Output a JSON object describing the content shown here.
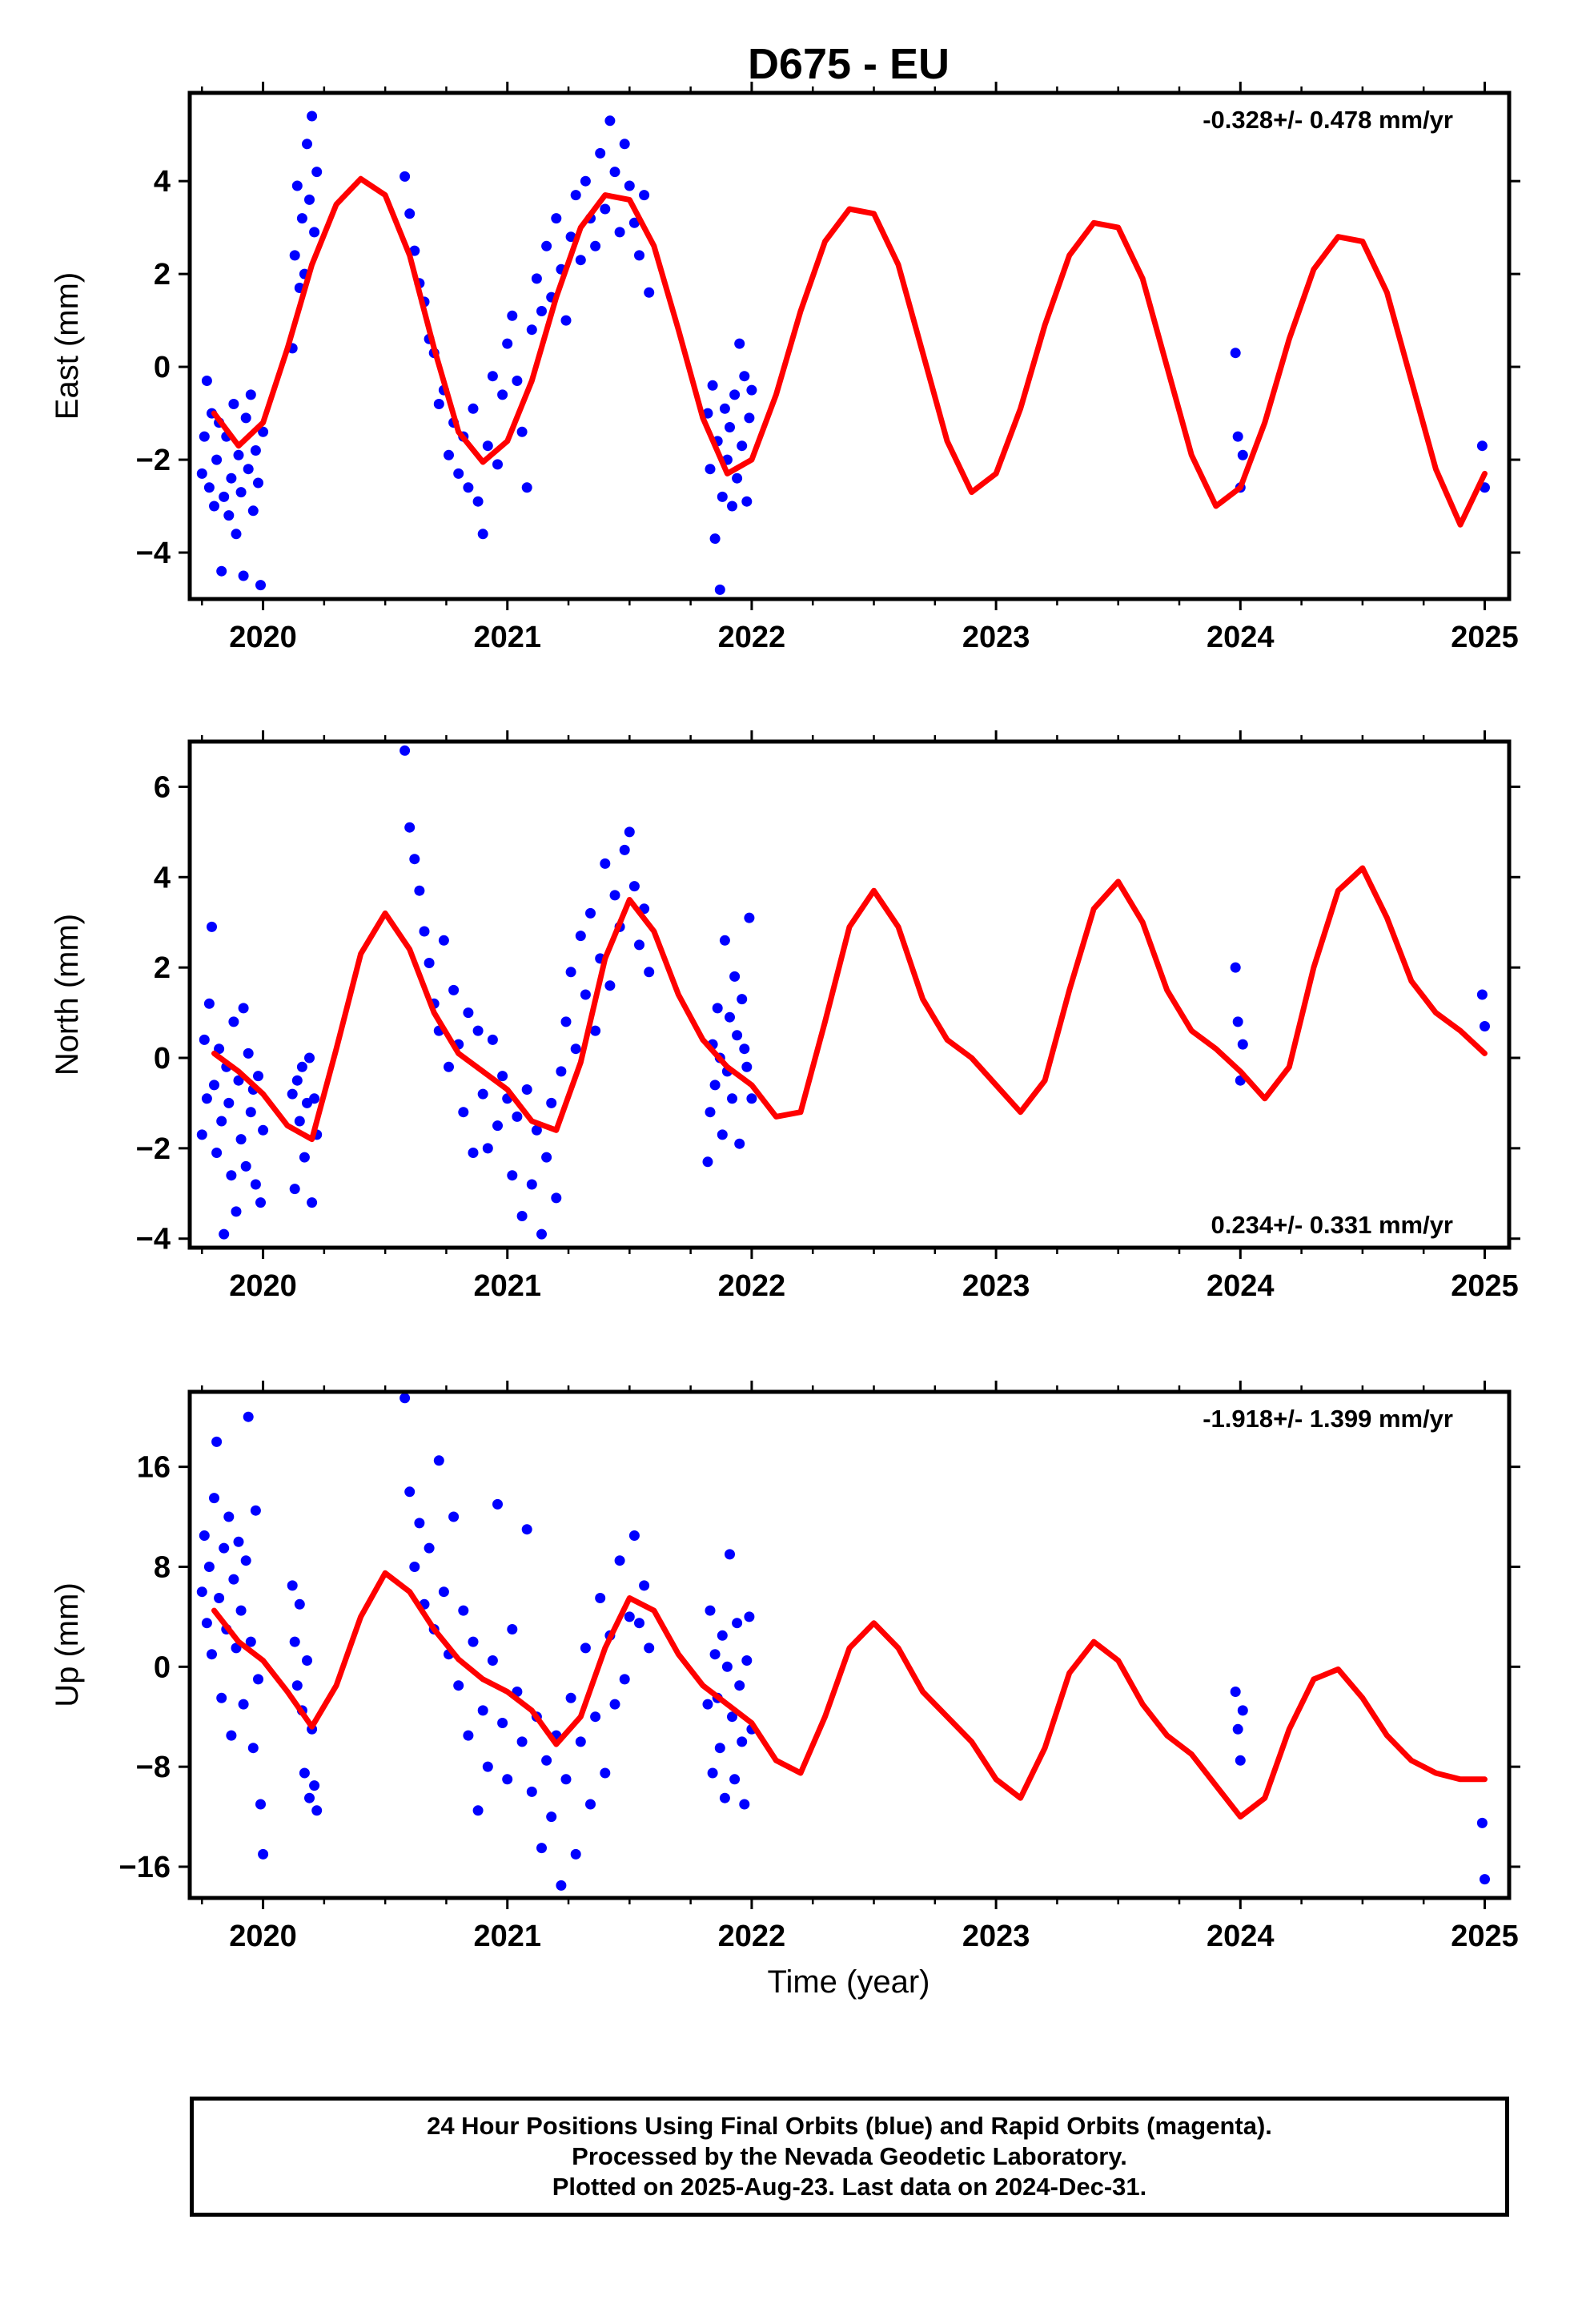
{
  "title": "D675 - EU",
  "footer": {
    "line1": "24 Hour Positions Using Final Orbits (blue) and Rapid Orbits (magenta).",
    "line2": "Processed by the Nevada Geodetic Laboratory.",
    "line3": "Plotted on 2025-Aug-23. Last data on 2024-Dec-31."
  },
  "colors": {
    "data": "#0000ff",
    "model": "#ff0000",
    "frame": "#000000"
  },
  "chart_data": [
    {
      "type": "scatter",
      "ylabel": "East (mm)",
      "xlabel": "",
      "rate_label": "-0.328+/- 0.478 mm/yr",
      "rate_position": "top-right",
      "xlim": [
        2019.7,
        2025.1
      ],
      "ylim": [
        -5.0,
        5.9
      ],
      "xticks": [
        2020,
        2021,
        2022,
        2023,
        2024,
        2025
      ],
      "yticks": [
        -4,
        -2,
        0,
        2,
        4
      ],
      "model": {
        "x": [
          2019.8,
          2019.9,
          2020.0,
          2020.1,
          2020.2,
          2020.3,
          2020.4,
          2020.5,
          2020.6,
          2020.7,
          2020.8,
          2020.9,
          2021.0,
          2021.1,
          2021.2,
          2021.3,
          2021.4,
          2021.5,
          2021.6,
          2021.7,
          2021.8,
          2021.9,
          2022.0,
          2022.1,
          2022.2,
          2022.3,
          2022.4,
          2022.5,
          2022.6,
          2022.7,
          2022.8,
          2022.9,
          2023.0,
          2023.1,
          2023.2,
          2023.3,
          2023.4,
          2023.5,
          2023.6,
          2023.7,
          2023.8,
          2023.9,
          2024.0,
          2024.1,
          2024.2,
          2024.3,
          2024.4,
          2024.5,
          2024.6,
          2024.7,
          2024.8,
          2024.9,
          2025.0
        ],
        "y": [
          -1.0,
          -1.7,
          -1.2,
          0.4,
          2.2,
          3.5,
          4.05,
          3.7,
          2.4,
          0.4,
          -1.4,
          -2.05,
          -1.6,
          -0.3,
          1.5,
          3.0,
          3.7,
          3.6,
          2.6,
          0.8,
          -1.1,
          -2.3,
          -2.0,
          -0.6,
          1.2,
          2.7,
          3.4,
          3.3,
          2.2,
          0.3,
          -1.6,
          -2.7,
          -2.3,
          -0.9,
          0.9,
          2.4,
          3.1,
          3.0,
          1.9,
          0.0,
          -1.9,
          -3.0,
          -2.6,
          -1.2,
          0.6,
          2.1,
          2.8,
          2.7,
          1.6,
          -0.3,
          -2.2,
          -3.4,
          -2.3
        ]
      },
      "points": {
        "x": [
          2019.75,
          2019.76,
          2019.77,
          2019.78,
          2019.79,
          2019.8,
          2019.81,
          2019.82,
          2019.83,
          2019.84,
          2019.85,
          2019.86,
          2019.87,
          2019.88,
          2019.89,
          2019.9,
          2019.91,
          2019.92,
          2019.93,
          2019.94,
          2019.95,
          2019.96,
          2019.97,
          2019.98,
          2019.99,
          2020.0,
          2020.12,
          2020.13,
          2020.14,
          2020.15,
          2020.16,
          2020.17,
          2020.18,
          2020.19,
          2020.2,
          2020.21,
          2020.22,
          2020.58,
          2020.6,
          2020.62,
          2020.64,
          2020.66,
          2020.68,
          2020.7,
          2020.72,
          2020.74,
          2020.76,
          2020.78,
          2020.8,
          2020.82,
          2020.84,
          2020.86,
          2020.88,
          2020.9,
          2020.92,
          2020.94,
          2020.96,
          2020.98,
          2021.0,
          2021.02,
          2021.04,
          2021.06,
          2021.08,
          2021.1,
          2021.12,
          2021.14,
          2021.16,
          2021.18,
          2021.2,
          2021.22,
          2021.24,
          2021.26,
          2021.28,
          2021.3,
          2021.32,
          2021.34,
          2021.36,
          2021.38,
          2021.4,
          2021.42,
          2021.44,
          2021.46,
          2021.48,
          2021.5,
          2021.52,
          2021.54,
          2021.56,
          2021.58,
          2021.82,
          2021.83,
          2021.84,
          2021.85,
          2021.86,
          2021.87,
          2021.88,
          2021.89,
          2021.9,
          2021.91,
          2021.92,
          2021.93,
          2021.94,
          2021.95,
          2021.96,
          2021.97,
          2021.98,
          2021.99,
          2022.0,
          2023.98,
          2023.99,
          2024.0,
          2024.01,
          2024.99,
          2025.0
        ],
        "y": [
          -2.3,
          -1.5,
          -0.3,
          -2.6,
          -1.0,
          -3.0,
          -2.0,
          -1.2,
          -4.4,
          -2.8,
          -1.5,
          -3.2,
          -2.4,
          -0.8,
          -3.6,
          -1.9,
          -2.7,
          -4.5,
          -1.1,
          -2.2,
          -0.6,
          -3.1,
          -1.8,
          -2.5,
          -4.7,
          -1.4,
          0.4,
          2.4,
          3.9,
          1.7,
          3.2,
          2.0,
          4.8,
          3.6,
          5.4,
          2.9,
          4.2,
          4.1,
          3.3,
          2.5,
          1.8,
          1.4,
          0.6,
          0.3,
          -0.8,
          -0.5,
          -1.9,
          -1.2,
          -2.3,
          -1.5,
          -2.6,
          -0.9,
          -2.9,
          -3.6,
          -1.7,
          -0.2,
          -2.1,
          -0.6,
          0.5,
          1.1,
          -0.3,
          -1.4,
          -2.6,
          0.8,
          1.9,
          1.2,
          2.6,
          1.5,
          3.2,
          2.1,
          1.0,
          2.8,
          3.7,
          2.3,
          4.0,
          3.2,
          2.6,
          4.6,
          3.4,
          5.3,
          4.2,
          2.9,
          4.8,
          3.9,
          3.1,
          2.4,
          3.7,
          1.6,
          -1.0,
          -2.2,
          -0.4,
          -3.7,
          -1.6,
          -4.8,
          -2.8,
          -0.9,
          -2.0,
          -1.3,
          -3.0,
          -0.6,
          -2.4,
          0.5,
          -1.7,
          -0.2,
          -2.9,
          -1.1,
          -0.5,
          0.3,
          -1.5,
          -2.6,
          -1.9,
          -1.7,
          -2.6
        ]
      }
    },
    {
      "type": "scatter",
      "ylabel": "North (mm)",
      "xlabel": "",
      "rate_label": "0.234+/- 0.331 mm/yr",
      "rate_position": "bottom-right",
      "xlim": [
        2019.7,
        2025.1
      ],
      "ylim": [
        -4.2,
        7.0
      ],
      "xticks": [
        2020,
        2021,
        2022,
        2023,
        2024,
        2025
      ],
      "yticks": [
        -4,
        -2,
        0,
        2,
        4,
        6
      ],
      "model": {
        "x": [
          2019.8,
          2019.9,
          2020.0,
          2020.1,
          2020.2,
          2020.3,
          2020.4,
          2020.5,
          2020.6,
          2020.7,
          2020.8,
          2020.9,
          2021.0,
          2021.1,
          2021.2,
          2021.3,
          2021.4,
          2021.5,
          2021.6,
          2021.7,
          2021.8,
          2021.9,
          2022.0,
          2022.1,
          2022.2,
          2022.3,
          2022.4,
          2022.5,
          2022.6,
          2022.7,
          2022.8,
          2022.9,
          2023.0,
          2023.1,
          2023.2,
          2023.3,
          2023.4,
          2023.5,
          2023.6,
          2023.7,
          2023.8,
          2023.9,
          2024.0,
          2024.1,
          2024.2,
          2024.3,
          2024.4,
          2024.5,
          2024.6,
          2024.7,
          2024.8,
          2024.9,
          2025.0
        ],
        "y": [
          0.1,
          -0.3,
          -0.8,
          -1.5,
          -1.8,
          0.2,
          2.3,
          3.2,
          2.4,
          1.0,
          0.1,
          -0.3,
          -0.7,
          -1.4,
          -1.6,
          -0.1,
          2.2,
          3.5,
          2.8,
          1.4,
          0.4,
          -0.2,
          -0.6,
          -1.3,
          -1.2,
          0.8,
          2.9,
          3.7,
          2.9,
          1.3,
          0.4,
          0.0,
          -0.6,
          -1.2,
          -0.5,
          1.5,
          3.3,
          3.9,
          3.0,
          1.5,
          0.6,
          0.2,
          -0.3,
          -0.9,
          -0.2,
          2.0,
          3.7,
          4.2,
          3.1,
          1.7,
          1.0,
          0.6,
          0.1
        ]
      },
      "points": {
        "x": [
          2019.75,
          2019.76,
          2019.77,
          2019.78,
          2019.79,
          2019.8,
          2019.81,
          2019.82,
          2019.83,
          2019.84,
          2019.85,
          2019.86,
          2019.87,
          2019.88,
          2019.89,
          2019.9,
          2019.91,
          2019.92,
          2019.93,
          2019.94,
          2019.95,
          2019.96,
          2019.97,
          2019.98,
          2019.99,
          2020.0,
          2020.12,
          2020.13,
          2020.14,
          2020.15,
          2020.16,
          2020.17,
          2020.18,
          2020.19,
          2020.2,
          2020.21,
          2020.22,
          2020.58,
          2020.6,
          2020.62,
          2020.64,
          2020.66,
          2020.68,
          2020.7,
          2020.72,
          2020.74,
          2020.76,
          2020.78,
          2020.8,
          2020.82,
          2020.84,
          2020.86,
          2020.88,
          2020.9,
          2020.92,
          2020.94,
          2020.96,
          2020.98,
          2021.0,
          2021.02,
          2021.04,
          2021.06,
          2021.08,
          2021.1,
          2021.12,
          2021.14,
          2021.16,
          2021.18,
          2021.2,
          2021.22,
          2021.24,
          2021.26,
          2021.28,
          2021.3,
          2021.32,
          2021.34,
          2021.36,
          2021.38,
          2021.4,
          2021.42,
          2021.44,
          2021.46,
          2021.48,
          2021.5,
          2021.52,
          2021.54,
          2021.56,
          2021.58,
          2021.82,
          2021.83,
          2021.84,
          2021.85,
          2021.86,
          2021.87,
          2021.88,
          2021.89,
          2021.9,
          2021.91,
          2021.92,
          2021.93,
          2021.94,
          2021.95,
          2021.96,
          2021.97,
          2021.98,
          2021.99,
          2022.0,
          2023.98,
          2023.99,
          2024.0,
          2024.01,
          2024.99,
          2025.0
        ],
        "y": [
          -1.7,
          0.4,
          -0.9,
          1.2,
          2.9,
          -0.6,
          -2.1,
          0.2,
          -1.4,
          -3.9,
          -0.2,
          -1.0,
          -2.6,
          0.8,
          -3.4,
          -0.5,
          -1.8,
          1.1,
          -2.4,
          0.1,
          -1.2,
          -0.7,
          -2.8,
          -0.4,
          -3.2,
          -1.6,
          -0.8,
          -2.9,
          -0.5,
          -1.4,
          -0.2,
          -2.2,
          -1.0,
          0.0,
          -3.2,
          -0.9,
          -1.7,
          6.8,
          5.1,
          4.4,
          3.7,
          2.8,
          2.1,
          1.2,
          0.6,
          2.6,
          -0.2,
          1.5,
          0.3,
          -1.2,
          1.0,
          -2.1,
          0.6,
          -0.8,
          -2.0,
          0.4,
          -1.5,
          -0.4,
          -0.9,
          -2.6,
          -1.3,
          -3.5,
          -0.7,
          -2.8,
          -1.6,
          -3.9,
          -2.2,
          -1.0,
          -3.1,
          -0.3,
          0.8,
          1.9,
          0.2,
          2.7,
          1.4,
          3.2,
          0.6,
          2.2,
          4.3,
          1.6,
          3.6,
          2.9,
          4.6,
          5.0,
          3.8,
          2.5,
          3.3,
          1.9,
          -2.3,
          -1.2,
          0.3,
          -0.6,
          1.1,
          0.0,
          -1.7,
          2.6,
          -0.3,
          0.9,
          -0.9,
          1.8,
          0.5,
          -1.9,
          1.3,
          0.2,
          -0.2,
          3.1,
          -0.9,
          2.0,
          0.8,
          -0.5,
          0.3,
          1.4,
          0.7
        ]
      }
    },
    {
      "type": "scatter",
      "ylabel": "Up (mm)",
      "xlabel": "Time (year)",
      "rate_label": "-1.918+/- 1.399 mm/yr",
      "rate_position": "top-right",
      "xlim": [
        2019.7,
        2025.1
      ],
      "ylim": [
        -18.5,
        22.0
      ],
      "xticks": [
        2020,
        2021,
        2022,
        2023,
        2024,
        2025
      ],
      "yticks": [
        -16,
        -8,
        0,
        8,
        16
      ],
      "model": {
        "x": [
          2019.8,
          2019.9,
          2020.0,
          2020.1,
          2020.2,
          2020.3,
          2020.4,
          2020.5,
          2020.6,
          2020.7,
          2020.8,
          2020.9,
          2021.0,
          2021.1,
          2021.2,
          2021.3,
          2021.4,
          2021.5,
          2021.6,
          2021.7,
          2021.8,
          2021.9,
          2022.0,
          2022.1,
          2022.2,
          2022.3,
          2022.4,
          2022.5,
          2022.6,
          2022.7,
          2022.8,
          2022.9,
          2023.0,
          2023.1,
          2023.2,
          2023.3,
          2023.4,
          2023.5,
          2023.6,
          2023.7,
          2023.8,
          2023.9,
          2024.0,
          2024.1,
          2024.2,
          2024.3,
          2024.4,
          2024.5,
          2024.6,
          2024.7,
          2024.8,
          2024.9,
          2025.0
        ],
        "y": [
          4.5,
          2.0,
          0.5,
          -2.0,
          -4.8,
          -1.5,
          4.0,
          7.5,
          6.0,
          3.0,
          0.6,
          -1.0,
          -2.0,
          -3.5,
          -6.2,
          -4.0,
          1.5,
          5.5,
          4.5,
          1.0,
          -1.5,
          -3.0,
          -4.5,
          -7.5,
          -8.5,
          -4.0,
          1.5,
          3.5,
          1.5,
          -2.0,
          -4.0,
          -6.0,
          -9.0,
          -10.5,
          -6.5,
          -0.5,
          2.0,
          0.5,
          -3.0,
          -5.5,
          -7.0,
          -9.5,
          -12.0,
          -10.5,
          -5.0,
          -1.0,
          -0.2,
          -2.5,
          -5.5,
          -7.5,
          -8.5,
          -9.0,
          -9.0
        ]
      },
      "points": {
        "x": [
          2019.75,
          2019.76,
          2019.77,
          2019.78,
          2019.79,
          2019.8,
          2019.81,
          2019.82,
          2019.83,
          2019.84,
          2019.85,
          2019.86,
          2019.87,
          2019.88,
          2019.89,
          2019.9,
          2019.91,
          2019.92,
          2019.93,
          2019.94,
          2019.95,
          2019.96,
          2019.97,
          2019.98,
          2019.99,
          2020.0,
          2020.12,
          2020.13,
          2020.14,
          2020.15,
          2020.16,
          2020.17,
          2020.18,
          2020.19,
          2020.2,
          2020.21,
          2020.22,
          2020.58,
          2020.6,
          2020.62,
          2020.64,
          2020.66,
          2020.68,
          2020.7,
          2020.72,
          2020.74,
          2020.76,
          2020.78,
          2020.8,
          2020.82,
          2020.84,
          2020.86,
          2020.88,
          2020.9,
          2020.92,
          2020.94,
          2020.96,
          2020.98,
          2021.0,
          2021.02,
          2021.04,
          2021.06,
          2021.08,
          2021.1,
          2021.12,
          2021.14,
          2021.16,
          2021.18,
          2021.2,
          2021.22,
          2021.24,
          2021.26,
          2021.28,
          2021.3,
          2021.32,
          2021.34,
          2021.36,
          2021.38,
          2021.4,
          2021.42,
          2021.44,
          2021.46,
          2021.48,
          2021.5,
          2021.52,
          2021.54,
          2021.56,
          2021.58,
          2021.82,
          2021.83,
          2021.84,
          2021.85,
          2021.86,
          2021.87,
          2021.88,
          2021.89,
          2021.9,
          2021.91,
          2021.92,
          2021.93,
          2021.94,
          2021.95,
          2021.96,
          2021.97,
          2021.98,
          2021.99,
          2022.0,
          2023.98,
          2023.99,
          2024.0,
          2024.01,
          2024.99,
          2025.0
        ],
        "y": [
          6.0,
          10.5,
          3.5,
          8.0,
          1.0,
          13.5,
          18.0,
          5.5,
          -2.5,
          9.5,
          3.0,
          12.0,
          -5.5,
          7.0,
          1.5,
          10.0,
          4.5,
          -3.0,
          8.5,
          20.0,
          2.0,
          -6.5,
          12.5,
          -1.0,
          -11.0,
          -15.0,
          6.5,
          2.0,
          -1.5,
          5.0,
          -3.5,
          -8.5,
          0.5,
          -10.5,
          -5.0,
          -9.5,
          -11.5,
          21.5,
          14.0,
          8.0,
          11.5,
          5.0,
          9.5,
          3.0,
          16.5,
          6.0,
          1.0,
          12.0,
          -1.5,
          4.5,
          -5.5,
          2.0,
          -11.5,
          -3.5,
          -8.0,
          0.5,
          13.0,
          -4.5,
          -9.0,
          3.0,
          -2.0,
          -6.0,
          11.0,
          -10.0,
          -4.0,
          -14.5,
          -7.5,
          -12.0,
          -5.5,
          -17.5,
          -9.0,
          -2.5,
          -15.0,
          -6.0,
          1.5,
          -11.0,
          -4.0,
          5.5,
          -8.5,
          2.5,
          -3.0,
          8.5,
          -1.0,
          4.0,
          10.5,
          3.5,
          6.5,
          1.5,
          -3.0,
          4.5,
          -8.5,
          1.0,
          -2.5,
          -6.5,
          2.5,
          -10.5,
          0.0,
          9.0,
          -4.0,
          -9.0,
          3.5,
          -1.5,
          -6.0,
          -11.0,
          0.5,
          4.0,
          -5.0,
          -2.0,
          -5.0,
          -7.5,
          -3.5,
          -12.5,
          -17.0
        ]
      }
    }
  ]
}
